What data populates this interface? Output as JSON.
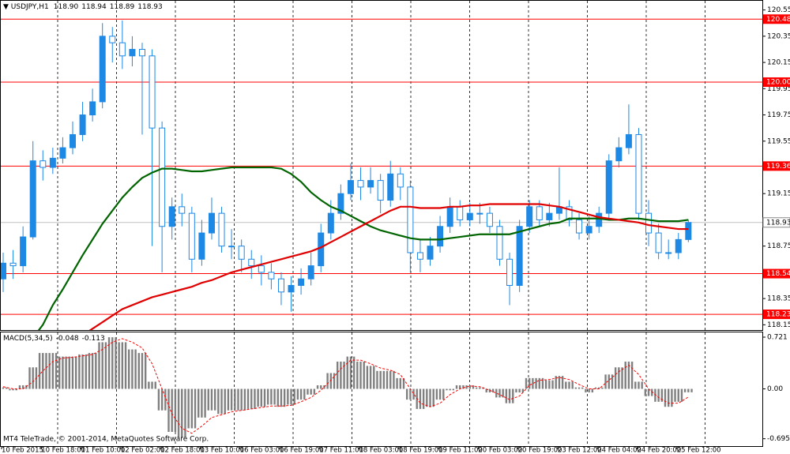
{
  "chart_data": {
    "type": "candlestick",
    "symbol": "USDJPY,H1",
    "header_values": [
      "118.90",
      "118.94",
      "118.89",
      "118.93"
    ],
    "up_color": "#1e88e5",
    "down_color": "#1e88e5",
    "categories": [
      "10 Feb 2015",
      null,
      null,
      null,
      "10 Feb 18:00",
      null,
      null,
      null,
      "11 Feb 10:00",
      null,
      null,
      null,
      "12 Feb 02:00",
      null,
      null,
      null,
      "12 Feb 18:00",
      null,
      null,
      null,
      "13 Feb 10:00",
      null,
      null,
      null,
      "16 Feb 03:00",
      null,
      null,
      null,
      "16 Feb 19:00",
      null,
      null,
      null,
      "17 Feb 11:00",
      null,
      null,
      null,
      "18 Feb 03:00",
      null,
      null,
      null,
      "18 Feb 19:00",
      null,
      null,
      null,
      "19 Feb 11:00",
      null,
      null,
      null,
      "20 Feb 03:00",
      null,
      null,
      null,
      "20 Feb 19:00",
      null,
      null,
      null,
      "23 Feb 12:00",
      null,
      null,
      null,
      "24 Feb 04:00",
      null,
      null,
      null,
      "24 Feb 20:00",
      null,
      null,
      null,
      "25 Feb 12:00",
      null
    ],
    "open": [
      118.5,
      118.62,
      118.6,
      118.82,
      119.4,
      119.35,
      119.42,
      119.5,
      119.6,
      119.75,
      119.85,
      120.35,
      120.3,
      120.2,
      120.25,
      120.2,
      119.65,
      118.9,
      119.05,
      119.0,
      118.65,
      118.85,
      119.0,
      118.75,
      118.75,
      118.65,
      118.6,
      118.55,
      118.5,
      118.4,
      118.45,
      118.5,
      118.6,
      118.85,
      119.0,
      119.15,
      119.25,
      119.2,
      119.25,
      119.1,
      119.3,
      119.2,
      118.7,
      118.65,
      118.75,
      118.9,
      119.05,
      118.95,
      119.0,
      119.0,
      118.9,
      118.65,
      118.45,
      118.9,
      119.05,
      118.95,
      119.0,
      119.05,
      118.95,
      118.85,
      118.9,
      119.0,
      119.4,
      119.5,
      119.6,
      119.0,
      118.85,
      118.7,
      118.7,
      118.8
    ],
    "high": [
      118.7,
      118.72,
      118.9,
      119.55,
      119.48,
      119.5,
      119.58,
      119.7,
      119.85,
      119.95,
      120.45,
      120.42,
      120.47,
      120.35,
      120.3,
      120.25,
      119.7,
      119.12,
      119.15,
      119.05,
      118.95,
      119.12,
      119.05,
      118.88,
      118.8,
      118.72,
      118.68,
      118.62,
      118.55,
      118.52,
      118.58,
      118.7,
      118.92,
      119.1,
      119.22,
      119.38,
      119.35,
      119.35,
      119.3,
      119.4,
      119.35,
      119.25,
      118.8,
      118.82,
      118.98,
      119.12,
      119.1,
      119.08,
      119.08,
      119.05,
      118.95,
      118.7,
      118.95,
      119.1,
      119.1,
      119.08,
      119.35,
      119.1,
      119.0,
      118.98,
      119.05,
      119.45,
      119.58,
      119.83,
      119.65,
      119.1,
      118.92,
      118.8,
      118.85,
      118.95
    ],
    "low": [
      118.4,
      118.5,
      118.55,
      118.8,
      119.25,
      119.3,
      119.38,
      119.45,
      119.55,
      119.7,
      119.8,
      120.15,
      120.1,
      120.12,
      119.6,
      118.75,
      118.55,
      118.8,
      118.9,
      118.55,
      118.6,
      118.8,
      118.7,
      118.65,
      118.55,
      118.5,
      118.45,
      118.42,
      118.3,
      118.25,
      118.38,
      118.45,
      118.55,
      118.8,
      118.95,
      119.1,
      119.1,
      119.15,
      119.0,
      119.05,
      119.1,
      118.55,
      118.55,
      118.6,
      118.7,
      118.85,
      118.9,
      118.9,
      118.92,
      118.85,
      118.6,
      118.3,
      118.4,
      118.85,
      118.9,
      118.9,
      118.95,
      118.9,
      118.8,
      118.8,
      118.85,
      118.95,
      119.35,
      119.45,
      118.95,
      118.75,
      118.65,
      118.65,
      118.65,
      118.78
    ],
    "close": [
      118.62,
      118.6,
      118.82,
      119.4,
      119.35,
      119.42,
      119.5,
      119.6,
      119.75,
      119.85,
      120.35,
      120.3,
      120.2,
      120.25,
      120.2,
      119.65,
      118.9,
      119.05,
      119.0,
      118.65,
      118.85,
      119.0,
      118.75,
      118.75,
      118.65,
      118.6,
      118.55,
      118.5,
      118.4,
      118.45,
      118.5,
      118.6,
      118.85,
      119.0,
      119.15,
      119.25,
      119.2,
      119.25,
      119.1,
      119.3,
      119.2,
      118.7,
      118.65,
      118.75,
      118.9,
      119.05,
      118.95,
      119.0,
      119.0,
      118.9,
      118.65,
      118.45,
      118.9,
      119.05,
      118.95,
      119.0,
      119.05,
      118.95,
      118.85,
      118.9,
      119.0,
      119.4,
      119.5,
      119.6,
      119.0,
      118.85,
      118.7,
      118.7,
      118.8,
      118.93
    ],
    "overlays": [
      {
        "color": "#006400",
        "values": [
          117.75,
          117.85,
          117.95,
          118.05,
          118.15,
          118.3,
          118.42,
          118.55,
          118.68,
          118.8,
          118.92,
          119.02,
          119.12,
          119.2,
          119.27,
          119.31,
          119.34,
          119.34,
          119.33,
          119.32,
          119.32,
          119.33,
          119.34,
          119.35,
          119.35,
          119.35,
          119.35,
          119.35,
          119.34,
          119.3,
          119.24,
          119.16,
          119.1,
          119.05,
          119.02,
          118.98,
          118.94,
          118.9,
          118.87,
          118.85,
          118.83,
          118.81,
          118.8,
          118.8,
          118.8,
          118.81,
          118.82,
          118.83,
          118.84,
          118.84,
          118.84,
          118.84,
          118.86,
          118.88,
          118.9,
          118.92,
          118.93,
          118.96,
          118.96,
          118.96,
          118.96,
          118.95,
          118.95,
          118.96,
          118.96,
          118.95,
          118.94,
          118.94,
          118.94,
          118.95
        ]
      },
      {
        "color": "#e00000",
        "values": [
          117.4,
          117.5,
          117.6,
          117.7,
          117.8,
          117.88,
          117.96,
          118.02,
          118.07,
          118.12,
          118.17,
          118.22,
          118.27,
          118.3,
          118.33,
          118.36,
          118.38,
          118.4,
          118.42,
          118.44,
          118.47,
          118.49,
          118.52,
          118.55,
          118.57,
          118.59,
          118.61,
          118.63,
          118.65,
          118.67,
          118.69,
          118.71,
          118.74,
          118.78,
          118.82,
          118.86,
          118.9,
          118.94,
          118.98,
          119.02,
          119.05,
          119.05,
          119.04,
          119.04,
          119.04,
          119.05,
          119.05,
          119.06,
          119.06,
          119.07,
          119.07,
          119.07,
          119.07,
          119.07,
          119.07,
          119.06,
          119.05,
          119.03,
          119.01,
          118.99,
          118.97,
          118.96,
          118.95,
          118.94,
          118.93,
          118.91,
          118.9,
          118.89,
          118.88,
          118.88
        ]
      }
    ],
    "ylim": [
      118.11,
      120.62
    ],
    "yticks": [
      120.55,
      120.35,
      120.15,
      119.95,
      119.75,
      119.55,
      119.15,
      118.75,
      118.35,
      118.15
    ],
    "levels": [
      120.48,
      {
        "value": 120,
        "label": "120.00"
      },
      119.36,
      118.54,
      118.23
    ],
    "level_color": "#ff0000",
    "current_price": 118.93,
    "macd": {
      "label": "MACD(5,34,5)",
      "values_text": [
        "-0.048",
        "-0.113"
      ],
      "bar_color": "#808080",
      "signal_color": "#ff0000",
      "histogram": [
        0.02,
        -0.02,
        0.05,
        0.3,
        0.5,
        0.5,
        0.45,
        0.45,
        0.48,
        0.5,
        0.65,
        0.72,
        0.65,
        0.55,
        0.5,
        0.1,
        -0.3,
        -0.6,
        -0.68,
        -0.55,
        -0.4,
        -0.3,
        -0.35,
        -0.3,
        -0.3,
        -0.28,
        -0.25,
        -0.22,
        -0.25,
        -0.22,
        -0.15,
        -0.08,
        0.05,
        0.22,
        0.38,
        0.45,
        0.38,
        0.32,
        0.25,
        0.25,
        0.15,
        -0.15,
        -0.28,
        -0.25,
        -0.15,
        -0.02,
        0.05,
        0.05,
        0.02,
        -0.05,
        -0.12,
        -0.2,
        -0.05,
        0.15,
        0.15,
        0.12,
        0.18,
        0.1,
        0.02,
        -0.05,
        0.02,
        0.2,
        0.3,
        0.38,
        0.1,
        -0.1,
        -0.18,
        -0.25,
        -0.18,
        -0.048
      ],
      "signal": [
        0.03,
        0.0,
        0.0,
        0.1,
        0.25,
        0.38,
        0.43,
        0.44,
        0.46,
        0.48,
        0.55,
        0.65,
        0.7,
        0.65,
        0.57,
        0.35,
        0.0,
        -0.35,
        -0.55,
        -0.62,
        -0.52,
        -0.4,
        -0.36,
        -0.32,
        -0.3,
        -0.28,
        -0.26,
        -0.24,
        -0.24,
        -0.23,
        -0.18,
        -0.12,
        -0.02,
        0.12,
        0.28,
        0.4,
        0.4,
        0.35,
        0.29,
        0.26,
        0.2,
        0.0,
        -0.2,
        -0.25,
        -0.2,
        -0.08,
        0.0,
        0.04,
        0.03,
        -0.02,
        -0.08,
        -0.15,
        -0.1,
        0.05,
        0.12,
        0.13,
        0.16,
        0.13,
        0.06,
        0.0,
        0.0,
        0.12,
        0.24,
        0.33,
        0.2,
        0.0,
        -0.12,
        -0.2,
        -0.2,
        -0.113
      ],
      "ylim": [
        -0.798,
        0.787
      ],
      "yticks": [
        0.721,
        {
          "value": 0,
          "label": "0.00"
        },
        -0.695
      ]
    },
    "footer": "MT4 TeleTrade, © 2001-2014, MetaQuotes Software Corp."
  }
}
